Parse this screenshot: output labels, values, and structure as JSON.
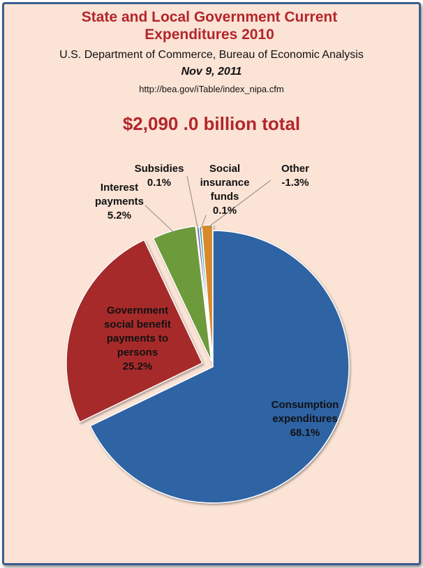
{
  "header": {
    "title_line1": "State and Local Government Current",
    "title_line2": "Expenditures 2010",
    "agency": "U.S. Department of Commerce, Bureau of Economic Analysis",
    "date": "Nov 9, 2011",
    "url": "http://bea.gov/iTable/index_nipa.cfm",
    "total": "$2,090 .0 billion total"
  },
  "chart_data": {
    "type": "pie",
    "title": "State and Local Government Current Expenditures 2010",
    "slices": [
      {
        "name": "Consumption expenditures",
        "value": 68.1,
        "label_lines": [
          "Consumption",
          "expenditures",
          "68.1%"
        ],
        "color": "#2e63a4"
      },
      {
        "name": "Government social benefit payments to persons",
        "value": 25.2,
        "label_lines": [
          "Government",
          "social benefit",
          "payments to",
          "persons",
          "25.2%"
        ],
        "color": "#a72a2a"
      },
      {
        "name": "Interest payments",
        "value": 5.2,
        "label_lines": [
          "Interest",
          "payments",
          "5.2%"
        ],
        "color": "#6d9a3b"
      },
      {
        "name": "Subsidies",
        "value": 0.1,
        "label_lines": [
          "Subsidies",
          "0.1%"
        ],
        "color": "#7a5aa0"
      },
      {
        "name": "Social insurance funds",
        "value": 0.1,
        "label_lines": [
          "Social",
          "insurance",
          "funds",
          "0.1%"
        ],
        "color": "#3f9fb5"
      },
      {
        "name": "Other",
        "value": -1.3,
        "label_lines": [
          "Other",
          "-1.3%"
        ],
        "color": "#d88a2a"
      }
    ]
  }
}
